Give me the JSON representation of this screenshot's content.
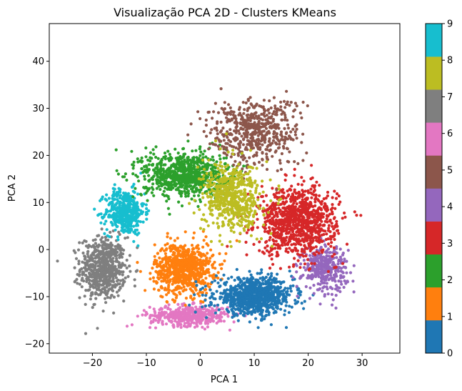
{
  "chart_data": {
    "type": "scatter",
    "title": "Visualização PCA 2D - Clusters KMeans",
    "xlabel": "PCA 1",
    "ylabel": "PCA 2",
    "xlim": [
      -28,
      37
    ],
    "ylim": [
      -22,
      48
    ],
    "xticks": [
      "−20",
      "−10",
      "0",
      "10",
      "20",
      "30"
    ],
    "xtick_values": [
      -20,
      -10,
      0,
      10,
      20,
      30
    ],
    "yticks": [
      "−20",
      "−10",
      "0",
      "10",
      "20",
      "30",
      "40"
    ],
    "ytick_values": [
      -20,
      -10,
      0,
      10,
      20,
      30,
      40
    ],
    "grid": false,
    "colorbar": {
      "ticks": [
        "0",
        "1",
        "2",
        "3",
        "4",
        "5",
        "6",
        "7",
        "8",
        "9"
      ],
      "range": [
        0,
        9
      ],
      "colormap": "tab10"
    },
    "series": [
      {
        "cluster": 0,
        "color": "#1f77b4",
        "center": [
          10,
          -10
        ],
        "spread": [
          6,
          3.2
        ],
        "count": 900
      },
      {
        "cluster": 1,
        "color": "#ff7f0e",
        "center": [
          -3,
          -4
        ],
        "spread": [
          4.5,
          4.5
        ],
        "count": 800
      },
      {
        "cluster": 2,
        "color": "#2ca02c",
        "center": [
          -3,
          16
        ],
        "spread": [
          6.5,
          4
        ],
        "count": 800
      },
      {
        "cluster": 3,
        "color": "#d62728",
        "center": [
          18,
          6
        ],
        "spread": [
          6,
          6
        ],
        "count": 1000
      },
      {
        "cluster": 4,
        "color": "#9467bd",
        "center": [
          23,
          -4
        ],
        "spread": [
          3.5,
          4
        ],
        "count": 350
      },
      {
        "cluster": 5,
        "color": "#8c564b",
        "center": [
          10,
          25
        ],
        "spread": [
          7,
          6
        ],
        "count": 550
      },
      {
        "cluster": 6,
        "color": "#e377c2",
        "center": [
          -2,
          -14
        ],
        "spread": [
          6,
          1.8
        ],
        "count": 450
      },
      {
        "cluster": 7,
        "color": "#7f7f7f",
        "center": [
          -18,
          -4
        ],
        "spread": [
          3.5,
          5.5
        ],
        "count": 650
      },
      {
        "cluster": 8,
        "color": "#bcbd22",
        "center": [
          6,
          11
        ],
        "spread": [
          4.5,
          6
        ],
        "count": 600
      },
      {
        "cluster": 9,
        "color": "#17becf",
        "center": [
          -14,
          8
        ],
        "spread": [
          3,
          4
        ],
        "count": 450
      }
    ]
  }
}
